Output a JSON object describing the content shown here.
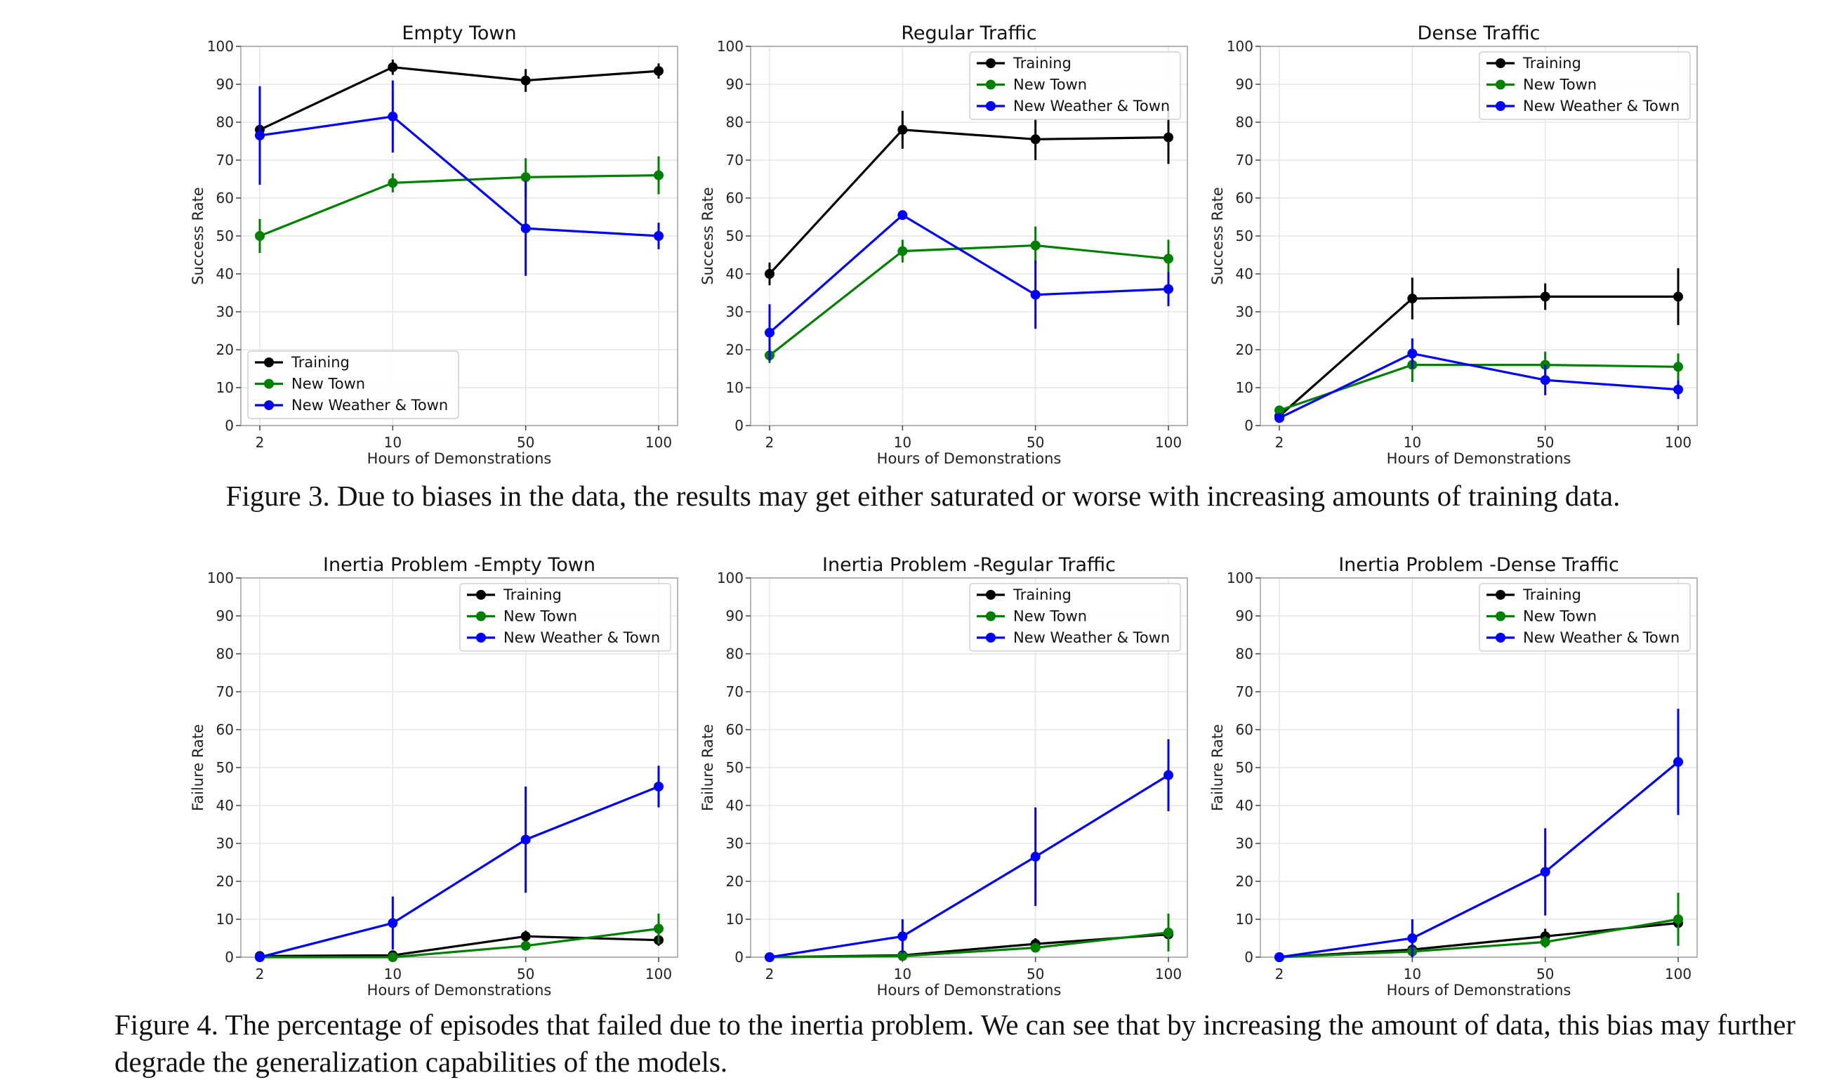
{
  "figures": [
    {
      "caption": "Figure 3. Due to biases in the data, the results may get either saturated or worse with increasing amounts of training data.",
      "charts": [
        {
          "type": "line",
          "title": "Empty Town",
          "xlabel": "Hours of Demonstrations",
          "ylabel": "Success Rate",
          "x": [
            "2",
            "10",
            "50",
            "100"
          ],
          "ylim": [
            0,
            100
          ],
          "yticks": [
            0,
            10,
            20,
            30,
            40,
            50,
            60,
            70,
            80,
            90,
            100
          ],
          "grid": true,
          "legend": "lower-left",
          "series": [
            {
              "name": "Training",
              "color": "#000000",
              "values": [
                78,
                94.5,
                91,
                93.5
              ],
              "err": [
                2,
                2,
                3,
                2
              ]
            },
            {
              "name": "New Town",
              "color": "#008000",
              "values": [
                50,
                64,
                65.5,
                66
              ],
              "err": [
                4.5,
                2.5,
                5,
                5
              ]
            },
            {
              "name": "New Weather & Town",
              "color": "#0000ff",
              "values": [
                76.5,
                81.5,
                52,
                50
              ],
              "err": [
                13,
                9.5,
                12.5,
                3.5
              ]
            }
          ]
        },
        {
          "type": "line",
          "title": "Regular Traffic",
          "xlabel": "Hours of Demonstrations",
          "ylabel": "Success Rate",
          "x": [
            "2",
            "10",
            "50",
            "100"
          ],
          "ylim": [
            0,
            100
          ],
          "yticks": [
            0,
            10,
            20,
            30,
            40,
            50,
            60,
            70,
            80,
            90,
            100
          ],
          "grid": true,
          "legend": "upper-right",
          "series": [
            {
              "name": "Training",
              "color": "#000000",
              "values": [
                40,
                78,
                75.5,
                76
              ],
              "err": [
                3,
                5,
                5.5,
                7
              ]
            },
            {
              "name": "New Town",
              "color": "#008000",
              "values": [
                18.5,
                46,
                47.5,
                44
              ],
              "err": [
                2,
                3,
                5,
                5
              ]
            },
            {
              "name": "New Weather & Town",
              "color": "#0000ff",
              "values": [
                24.5,
                55.5,
                34.5,
                36
              ],
              "err": [
                7.5,
                1,
                9,
                4.5
              ]
            }
          ]
        },
        {
          "type": "line",
          "title": "Dense Traffic",
          "xlabel": "Hours of Demonstrations",
          "ylabel": "Success Rate",
          "x": [
            "2",
            "10",
            "50",
            "100"
          ],
          "ylim": [
            0,
            100
          ],
          "yticks": [
            0,
            10,
            20,
            30,
            40,
            50,
            60,
            70,
            80,
            90,
            100
          ],
          "grid": true,
          "legend": "upper-right",
          "series": [
            {
              "name": "Training",
              "color": "#000000",
              "values": [
                2.5,
                33.5,
                34,
                34
              ],
              "err": [
                1,
                5.5,
                3.5,
                7.5
              ]
            },
            {
              "name": "New Town",
              "color": "#008000",
              "values": [
                4,
                16,
                16,
                15.5
              ],
              "err": [
                1,
                4.5,
                3.5,
                3.5
              ]
            },
            {
              "name": "New Weather & Town",
              "color": "#0000ff",
              "values": [
                2,
                19,
                12,
                9.5
              ],
              "err": [
                1,
                4,
                4,
                2.5
              ]
            }
          ]
        }
      ]
    },
    {
      "caption": "Figure 4. The percentage of episodes that failed due to the inertia problem. We can see that by increasing the amount of data, this bias may further degrade the generalization capabilities of the models.",
      "charts": [
        {
          "type": "line",
          "title": "Inertia Problem -Empty Town",
          "xlabel": "Hours of Demonstrations",
          "ylabel": "Failure Rate",
          "x": [
            "2",
            "10",
            "50",
            "100"
          ],
          "ylim": [
            0,
            100
          ],
          "yticks": [
            0,
            10,
            20,
            30,
            40,
            50,
            60,
            70,
            80,
            90,
            100
          ],
          "grid": true,
          "legend": "upper-right",
          "series": [
            {
              "name": "Training",
              "color": "#000000",
              "values": [
                0.3,
                0.5,
                5.5,
                4.5
              ],
              "err": [
                0.3,
                0.5,
                1.5,
                1.5
              ]
            },
            {
              "name": "New Town",
              "color": "#008000",
              "values": [
                0,
                0,
                3,
                7.5
              ],
              "err": [
                0,
                0,
                1,
                4
              ]
            },
            {
              "name": "New Weather & Town",
              "color": "#0000ff",
              "values": [
                0,
                9,
                31,
                45
              ],
              "err": [
                0,
                7,
                14,
                5.5
              ]
            }
          ]
        },
        {
          "type": "line",
          "title": "Inertia Problem -Regular Traffic",
          "xlabel": "Hours of Demonstrations",
          "ylabel": "Failure Rate",
          "x": [
            "2",
            "10",
            "50",
            "100"
          ],
          "ylim": [
            0,
            100
          ],
          "yticks": [
            0,
            10,
            20,
            30,
            40,
            50,
            60,
            70,
            80,
            90,
            100
          ],
          "grid": true,
          "legend": "upper-right",
          "series": [
            {
              "name": "Training",
              "color": "#000000",
              "values": [
                0,
                0.5,
                3.5,
                6
              ],
              "err": [
                0,
                0.5,
                1.5,
                2
              ]
            },
            {
              "name": "New Town",
              "color": "#008000",
              "values": [
                0,
                0.3,
                2.5,
                6.5
              ],
              "err": [
                0,
                0.3,
                1,
                5
              ]
            },
            {
              "name": "New Weather & Town",
              "color": "#0000ff",
              "values": [
                0,
                5.5,
                26.5,
                48
              ],
              "err": [
                0,
                4.5,
                13,
                9.5
              ]
            }
          ]
        },
        {
          "type": "line",
          "title": "Inertia Problem -Dense Traffic",
          "xlabel": "Hours of Demonstrations",
          "ylabel": "Failure Rate",
          "x": [
            "2",
            "10",
            "50",
            "100"
          ],
          "ylim": [
            0,
            100
          ],
          "yticks": [
            0,
            10,
            20,
            30,
            40,
            50,
            60,
            70,
            80,
            90,
            100
          ],
          "grid": true,
          "legend": "upper-right",
          "series": [
            {
              "name": "Training",
              "color": "#000000",
              "values": [
                0,
                2,
                5.5,
                9
              ],
              "err": [
                0,
                1,
                2,
                2
              ]
            },
            {
              "name": "New Town",
              "color": "#008000",
              "values": [
                0,
                1.5,
                4,
                10
              ],
              "err": [
                0,
                1,
                1.5,
                7
              ]
            },
            {
              "name": "New Weather & Town",
              "color": "#0000ff",
              "values": [
                0,
                5,
                22.5,
                51.5
              ],
              "err": [
                0,
                5,
                11.5,
                14
              ]
            }
          ]
        }
      ]
    }
  ]
}
